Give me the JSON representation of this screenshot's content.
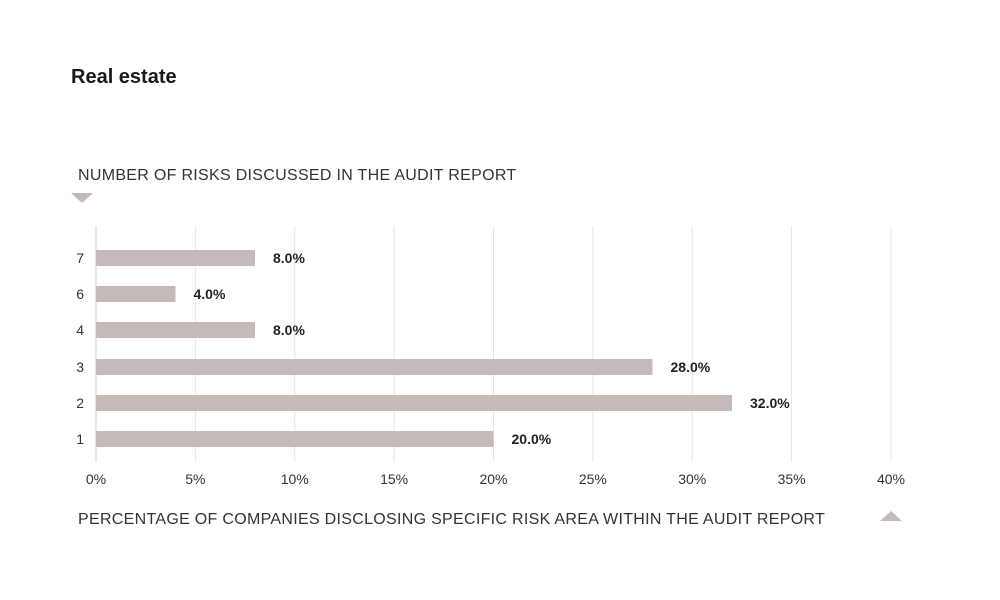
{
  "title": "Real estate",
  "chart_data": {
    "type": "bar",
    "orientation": "horizontal",
    "title": "Real estate",
    "ylabel": "NUMBER OF RISKS DISCUSSED IN THE AUDIT REPORT",
    "xlabel": "PERCENTAGE OF COMPANIES DISCLOSING SPECIFIC RISK AREA WITHIN THE AUDIT REPORT",
    "categories": [
      "7",
      "6",
      "4",
      "3",
      "2",
      "1"
    ],
    "values": [
      8.0,
      4.0,
      8.0,
      28.0,
      32.0,
      20.0
    ],
    "data_labels": [
      "8.0%",
      "4.0%",
      "8.0%",
      "28.0%",
      "32.0%",
      "20.0%"
    ],
    "xlim": [
      0,
      40
    ],
    "xticks": [
      0,
      5,
      10,
      15,
      20,
      25,
      30,
      35,
      40
    ],
    "xtick_labels": [
      "0%",
      "5%",
      "10%",
      "15%",
      "20%",
      "25%",
      "30%",
      "35%",
      "40%"
    ],
    "grid": true,
    "bar_color": "#c4bab7"
  }
}
